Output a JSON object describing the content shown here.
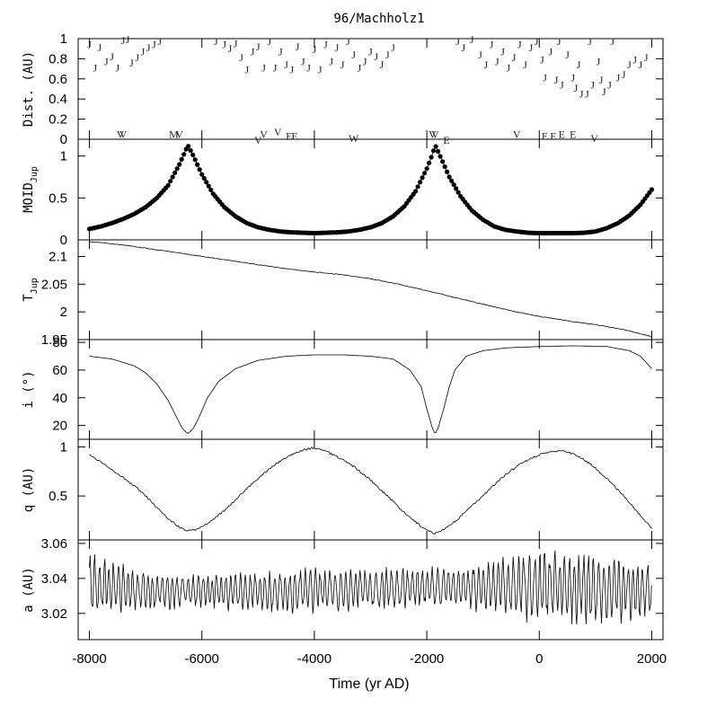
{
  "chart_data": {
    "type": "line",
    "title": "96/Machholz1",
    "xlabel": "Time (yr AD)",
    "xlim": [
      -8200,
      2200
    ],
    "xticks": [
      -8000,
      -6000,
      -4000,
      -2000,
      0,
      2000
    ],
    "xtick_labels": [
      "-8000",
      "-6000",
      "-4000",
      "-2000",
      "0",
      "2000"
    ],
    "panels": [
      {
        "id": "dist",
        "ylabel": "Dist. (AU)",
        "ylim": [
          0,
          1
        ],
        "yticks": [
          "0",
          "0.2",
          "0.4",
          "0.6",
          "0.8",
          "1"
        ],
        "kind": "encounters",
        "events": [
          {
            "t": -8000,
            "d": 0.95,
            "c": "J"
          },
          {
            "t": -7900,
            "d": 0.72,
            "c": "J"
          },
          {
            "t": -7820,
            "d": 0.92,
            "c": "J"
          },
          {
            "t": -7700,
            "d": 0.78,
            "c": "J"
          },
          {
            "t": -7600,
            "d": 0.83,
            "c": "J"
          },
          {
            "t": -7500,
            "d": 0.72,
            "c": "J"
          },
          {
            "t": -7400,
            "d": 0.99,
            "c": "J"
          },
          {
            "t": -7320,
            "d": 1.0,
            "c": "J"
          },
          {
            "t": -7250,
            "d": 0.77,
            "c": "J"
          },
          {
            "t": -7150,
            "d": 0.82,
            "c": "J"
          },
          {
            "t": -7050,
            "d": 0.88,
            "c": "J"
          },
          {
            "t": -6950,
            "d": 0.92,
            "c": "J"
          },
          {
            "t": -6850,
            "d": 0.95,
            "c": "J"
          },
          {
            "t": -6750,
            "d": 0.98,
            "c": "J"
          },
          {
            "t": -5750,
            "d": 0.98,
            "c": "J"
          },
          {
            "t": -5600,
            "d": 0.95,
            "c": "J"
          },
          {
            "t": -5500,
            "d": 0.91,
            "c": "J"
          },
          {
            "t": -5400,
            "d": 0.96,
            "c": "J"
          },
          {
            "t": -5300,
            "d": 0.82,
            "c": "J"
          },
          {
            "t": -5200,
            "d": 0.7,
            "c": "J"
          },
          {
            "t": -5100,
            "d": 0.88,
            "c": "J"
          },
          {
            "t": -5000,
            "d": 0.93,
            "c": "J"
          },
          {
            "t": -4900,
            "d": 0.72,
            "c": "J"
          },
          {
            "t": -4800,
            "d": 0.98,
            "c": "J"
          },
          {
            "t": -4700,
            "d": 0.72,
            "c": "J"
          },
          {
            "t": -4600,
            "d": 0.88,
            "c": "J"
          },
          {
            "t": -4500,
            "d": 0.75,
            "c": "J"
          },
          {
            "t": -4400,
            "d": 0.7,
            "c": "J"
          },
          {
            "t": -4300,
            "d": 0.93,
            "c": "J"
          },
          {
            "t": -4200,
            "d": 0.78,
            "c": "J"
          },
          {
            "t": -4100,
            "d": 0.72,
            "c": "J"
          },
          {
            "t": -4000,
            "d": 0.9,
            "c": "J"
          },
          {
            "t": -3900,
            "d": 0.7,
            "c": "J"
          },
          {
            "t": -3800,
            "d": 0.95,
            "c": "J"
          },
          {
            "t": -3700,
            "d": 0.78,
            "c": "J"
          },
          {
            "t": -3600,
            "d": 0.92,
            "c": "J"
          },
          {
            "t": -3500,
            "d": 0.75,
            "c": "J"
          },
          {
            "t": -3400,
            "d": 0.98,
            "c": "J"
          },
          {
            "t": -3300,
            "d": 0.85,
            "c": "J"
          },
          {
            "t": -3200,
            "d": 0.72,
            "c": "J"
          },
          {
            "t": -3100,
            "d": 0.78,
            "c": "J"
          },
          {
            "t": -3000,
            "d": 0.88,
            "c": "J"
          },
          {
            "t": -2900,
            "d": 0.83,
            "c": "J"
          },
          {
            "t": -2800,
            "d": 0.75,
            "c": "J"
          },
          {
            "t": -2700,
            "d": 0.85,
            "c": "J"
          },
          {
            "t": -2600,
            "d": 0.92,
            "c": "J"
          },
          {
            "t": -1450,
            "d": 0.98,
            "c": "J"
          },
          {
            "t": -1350,
            "d": 0.92,
            "c": "J"
          },
          {
            "t": -1200,
            "d": 1.0,
            "c": "J"
          },
          {
            "t": -1050,
            "d": 0.85,
            "c": "J"
          },
          {
            "t": -950,
            "d": 0.75,
            "c": "J"
          },
          {
            "t": -850,
            "d": 0.95,
            "c": "J"
          },
          {
            "t": -750,
            "d": 0.78,
            "c": "J"
          },
          {
            "t": -650,
            "d": 0.88,
            "c": "J"
          },
          {
            "t": -550,
            "d": 0.72,
            "c": "J"
          },
          {
            "t": -450,
            "d": 0.82,
            "c": "J"
          },
          {
            "t": -350,
            "d": 0.95,
            "c": "J"
          },
          {
            "t": -250,
            "d": 0.75,
            "c": "J"
          },
          {
            "t": -150,
            "d": 0.92,
            "c": "J"
          },
          {
            "t": -50,
            "d": 0.98,
            "c": "J"
          },
          {
            "t": 50,
            "d": 0.8,
            "c": "J"
          },
          {
            "t": 100,
            "d": 0.62,
            "c": "J"
          },
          {
            "t": 200,
            "d": 0.88,
            "c": "J"
          },
          {
            "t": 300,
            "d": 0.6,
            "c": "J"
          },
          {
            "t": 350,
            "d": 0.98,
            "c": "J"
          },
          {
            "t": 400,
            "d": 0.55,
            "c": "J"
          },
          {
            "t": 500,
            "d": 0.85,
            "c": "J"
          },
          {
            "t": 600,
            "d": 0.62,
            "c": "J"
          },
          {
            "t": 650,
            "d": 0.52,
            "c": "J"
          },
          {
            "t": 700,
            "d": 0.75,
            "c": "J"
          },
          {
            "t": 750,
            "d": 0.46,
            "c": "J"
          },
          {
            "t": 850,
            "d": 0.46,
            "c": "J"
          },
          {
            "t": 900,
            "d": 0.98,
            "c": "J"
          },
          {
            "t": 950,
            "d": 0.55,
            "c": "J"
          },
          {
            "t": 1050,
            "d": 0.78,
            "c": "J"
          },
          {
            "t": 1100,
            "d": 0.6,
            "c": "J"
          },
          {
            "t": 1150,
            "d": 0.48,
            "c": "J"
          },
          {
            "t": 1250,
            "d": 0.55,
            "c": "J"
          },
          {
            "t": 1300,
            "d": 0.98,
            "c": "J"
          },
          {
            "t": 1400,
            "d": 0.62,
            "c": "J"
          },
          {
            "t": 1500,
            "d": 0.65,
            "c": "J"
          },
          {
            "t": 1600,
            "d": 0.75,
            "c": "J"
          },
          {
            "t": 1700,
            "d": 0.8,
            "c": "J"
          },
          {
            "t": 1800,
            "d": 0.75,
            "c": "J"
          },
          {
            "t": 1900,
            "d": 0.82,
            "c": "J"
          },
          {
            "t": -7450,
            "d": 0.06,
            "c": "V"
          },
          {
            "t": -7400,
            "d": 0.06,
            "c": "V"
          },
          {
            "t": -6500,
            "d": 0.06,
            "c": "M"
          },
          {
            "t": -6400,
            "d": 0.06,
            "c": "V"
          },
          {
            "t": -5000,
            "d": 0.0,
            "c": "V"
          },
          {
            "t": -4900,
            "d": 0.06,
            "c": "V"
          },
          {
            "t": -4650,
            "d": 0.08,
            "c": "V"
          },
          {
            "t": -4450,
            "d": 0.04,
            "c": "E"
          },
          {
            "t": -4350,
            "d": 0.04,
            "c": "E"
          },
          {
            "t": -3300,
            "d": 0.02,
            "c": "W"
          },
          {
            "t": -1900,
            "d": 0.06,
            "c": "V"
          },
          {
            "t": -1850,
            "d": 0.06,
            "c": "V"
          },
          {
            "t": -1650,
            "d": 0.0,
            "c": "E"
          },
          {
            "t": -400,
            "d": 0.06,
            "c": "V"
          },
          {
            "t": 100,
            "d": 0.04,
            "c": "E"
          },
          {
            "t": 250,
            "d": 0.04,
            "c": "E"
          },
          {
            "t": 400,
            "d": 0.06,
            "c": "E"
          },
          {
            "t": 600,
            "d": 0.06,
            "c": "E"
          },
          {
            "t": 980,
            "d": 0.02,
            "c": "V"
          }
        ]
      },
      {
        "id": "moid",
        "ylabel": "MOID",
        "ylabel_sub": "Jup",
        "ylim": [
          0,
          1.2
        ],
        "yticks": [
          "0",
          "0.5",
          "1"
        ],
        "kind": "dots",
        "x": [
          -8000,
          -7800,
          -7600,
          -7400,
          -7200,
          -7000,
          -6800,
          -6600,
          -6400,
          -6300,
          -6250,
          -6150,
          -6000,
          -5800,
          -5600,
          -5400,
          -5200,
          -5000,
          -4800,
          -4600,
          -4400,
          -4200,
          -4000,
          -3800,
          -3600,
          -3400,
          -3200,
          -3000,
          -2800,
          -2600,
          -2400,
          -2200,
          -2000,
          -1900,
          -1850,
          -1750,
          -1600,
          -1400,
          -1200,
          -1000,
          -800,
          -600,
          -400,
          -200,
          0,
          200,
          400,
          600,
          800,
          1000,
          1200,
          1400,
          1600,
          1800,
          2000
        ],
        "y": [
          0.13,
          0.16,
          0.2,
          0.25,
          0.31,
          0.39,
          0.5,
          0.65,
          0.9,
          1.05,
          1.13,
          1.0,
          0.78,
          0.55,
          0.39,
          0.28,
          0.2,
          0.15,
          0.12,
          0.1,
          0.09,
          0.085,
          0.08,
          0.085,
          0.09,
          0.1,
          0.12,
          0.15,
          0.2,
          0.28,
          0.4,
          0.58,
          0.85,
          1.02,
          1.13,
          0.98,
          0.75,
          0.52,
          0.35,
          0.24,
          0.16,
          0.12,
          0.1,
          0.085,
          0.08,
          0.08,
          0.08,
          0.08,
          0.085,
          0.1,
          0.14,
          0.2,
          0.29,
          0.42,
          0.6
        ]
      },
      {
        "id": "tjup",
        "ylabel": "T",
        "ylabel_sub": "Jup",
        "ylim": [
          1.95,
          2.13
        ],
        "yticks": [
          "1.95",
          "2",
          "2.05",
          "2.1"
        ],
        "kind": "line",
        "x": [
          -8000,
          -7500,
          -7000,
          -6500,
          -6000,
          -5500,
          -5000,
          -4500,
          -4000,
          -3500,
          -3000,
          -2500,
          -2000,
          -1500,
          -1000,
          -500,
          0,
          500,
          1000,
          1500,
          2000
        ],
        "y": [
          2.127,
          2.122,
          2.115,
          2.108,
          2.1,
          2.093,
          2.085,
          2.078,
          2.072,
          2.067,
          2.06,
          2.05,
          2.038,
          2.026,
          2.014,
          2.002,
          1.992,
          1.984,
          1.977,
          1.968,
          1.955
        ]
      },
      {
        "id": "incl",
        "ylabel": "i (°)",
        "ylim": [
          10,
          82
        ],
        "yticks": [
          "20",
          "40",
          "60",
          "80"
        ],
        "kind": "line",
        "x": [
          -8000,
          -7600,
          -7200,
          -7000,
          -6800,
          -6600,
          -6450,
          -6350,
          -6250,
          -6150,
          -6050,
          -5900,
          -5700,
          -5400,
          -5000,
          -4500,
          -4000,
          -3500,
          -3000,
          -2600,
          -2300,
          -2100,
          -2000,
          -1900,
          -1850,
          -1800,
          -1700,
          -1600,
          -1500,
          -1300,
          -1000,
          -600,
          0,
          600,
          1200,
          1600,
          1800,
          2000
        ],
        "y": [
          70,
          68,
          63,
          58,
          50,
          38,
          26,
          18,
          14,
          18,
          26,
          40,
          52,
          61,
          67,
          70,
          71,
          71,
          70,
          68,
          60,
          48,
          32,
          18,
          14,
          18,
          32,
          48,
          60,
          70,
          74,
          76,
          77,
          77.5,
          77,
          74,
          70,
          61
        ]
      },
      {
        "id": "q",
        "ylabel": "q (AU)",
        "ylim": [
          0.08,
          1.05
        ],
        "yticks": [
          "0.5",
          "1"
        ],
        "kind": "line",
        "x": [
          -8000,
          -7800,
          -7500,
          -7200,
          -7000,
          -6800,
          -6600,
          -6400,
          -6250,
          -6100,
          -5900,
          -5600,
          -5300,
          -5000,
          -4700,
          -4400,
          -4200,
          -4000,
          -3800,
          -3600,
          -3300,
          -3000,
          -2700,
          -2400,
          -2100,
          -1900,
          -1850,
          -1750,
          -1500,
          -1200,
          -900,
          -600,
          -300,
          0,
          200,
          400,
          600,
          900,
          1200,
          1500,
          1800,
          2000
        ],
        "y": [
          0.92,
          0.85,
          0.73,
          0.6,
          0.5,
          0.38,
          0.27,
          0.18,
          0.15,
          0.16,
          0.22,
          0.35,
          0.52,
          0.68,
          0.82,
          0.92,
          0.97,
          0.99,
          0.96,
          0.9,
          0.8,
          0.66,
          0.5,
          0.33,
          0.19,
          0.13,
          0.12,
          0.14,
          0.24,
          0.4,
          0.56,
          0.72,
          0.84,
          0.92,
          0.95,
          0.96,
          0.93,
          0.83,
          0.68,
          0.5,
          0.3,
          0.17
        ]
      },
      {
        "id": "a",
        "ylabel": "a (AU)",
        "ylim": [
          3.005,
          3.062
        ],
        "yticks": [
          "3.02",
          "3.04",
          "3.06"
        ],
        "kind": "noisy",
        "x": [
          -8000,
          -7000,
          -6000,
          -5000,
          -4000,
          -3000,
          -2000,
          -1000,
          0,
          1000,
          2000
        ],
        "center": [
          3.037,
          3.033,
          3.033,
          3.032,
          3.033,
          3.034,
          3.035,
          3.035,
          3.035,
          3.034,
          3.034
        ],
        "amplitude": [
          0.02,
          0.012,
          0.01,
          0.013,
          0.014,
          0.013,
          0.012,
          0.015,
          0.022,
          0.022,
          0.018
        ]
      }
    ]
  }
}
